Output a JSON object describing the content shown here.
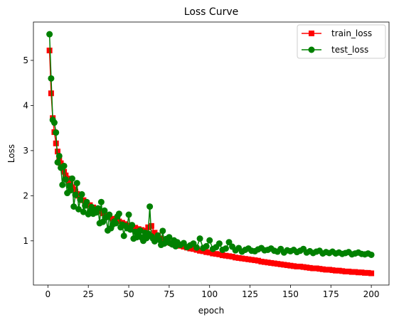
{
  "chart_data": {
    "type": "line",
    "title": "Loss Curve",
    "xlabel": "epoch",
    "ylabel": "Loss",
    "xlim": [
      -8.95,
      210.95
    ],
    "ylim": [
      0.02,
      5.85
    ],
    "xticks": [
      0,
      25,
      50,
      75,
      100,
      125,
      150,
      175,
      200
    ],
    "yticks": [
      1,
      2,
      3,
      4,
      5
    ],
    "grid": false,
    "legend": "top-right",
    "colors": {
      "train_loss": "#ff0000",
      "test_loss": "#008000"
    },
    "series": [
      {
        "name": "train_loss",
        "marker": "square",
        "x": [
          1,
          2,
          3,
          4,
          5,
          6,
          7,
          8,
          9,
          10,
          11,
          12,
          13,
          14,
          15,
          16,
          17,
          18,
          19,
          20,
          22,
          24,
          26,
          28,
          30,
          32,
          34,
          36,
          38,
          40,
          42,
          44,
          46,
          48,
          50,
          52,
          54,
          56,
          58,
          60,
          62,
          64,
          66,
          68,
          70,
          72,
          74,
          76,
          78,
          80,
          82,
          84,
          86,
          88,
          90,
          92,
          94,
          96,
          98,
          100,
          102,
          104,
          106,
          108,
          110,
          112,
          114,
          116,
          118,
          120,
          122,
          124,
          126,
          128,
          130,
          132,
          134,
          136,
          138,
          140,
          142,
          144,
          146,
          148,
          150,
          152,
          154,
          156,
          158,
          160,
          162,
          164,
          166,
          168,
          170,
          172,
          174,
          176,
          178,
          180,
          182,
          184,
          186,
          188,
          190,
          192,
          194,
          196,
          198,
          200
        ],
        "y": [
          5.22,
          4.27,
          3.72,
          3.41,
          3.16,
          2.98,
          2.83,
          2.72,
          2.62,
          2.53,
          2.45,
          2.38,
          2.31,
          2.25,
          2.19,
          2.14,
          2.09,
          2.04,
          2.0,
          1.96,
          1.9,
          1.84,
          1.79,
          1.74,
          1.7,
          1.65,
          1.61,
          1.57,
          1.53,
          1.49,
          1.46,
          1.43,
          1.4,
          1.37,
          1.34,
          1.31,
          1.29,
          1.26,
          1.24,
          1.22,
          1.3,
          1.33,
          1.18,
          1.12,
          1.05,
          1.02,
          0.98,
          0.95,
          0.93,
          0.91,
          0.89,
          0.87,
          0.85,
          0.83,
          0.82,
          0.8,
          0.78,
          0.77,
          0.75,
          0.74,
          0.72,
          0.71,
          0.7,
          0.68,
          0.67,
          0.66,
          0.65,
          0.63,
          0.62,
          0.61,
          0.6,
          0.59,
          0.58,
          0.57,
          0.56,
          0.54,
          0.53,
          0.52,
          0.51,
          0.5,
          0.49,
          0.48,
          0.47,
          0.46,
          0.45,
          0.44,
          0.43,
          0.43,
          0.42,
          0.41,
          0.4,
          0.39,
          0.39,
          0.38,
          0.37,
          0.36,
          0.36,
          0.35,
          0.34,
          0.34,
          0.33,
          0.32,
          0.32,
          0.31,
          0.31,
          0.3,
          0.3,
          0.29,
          0.29,
          0.28
        ]
      },
      {
        "name": "test_loss",
        "marker": "circle",
        "x": [
          1,
          2,
          3,
          4,
          5,
          6,
          7,
          8,
          9,
          10,
          11,
          12,
          13,
          14,
          15,
          16,
          17,
          18,
          19,
          20,
          21,
          22,
          23,
          24,
          25,
          26,
          27,
          28,
          29,
          30,
          31,
          32,
          33,
          34,
          35,
          36,
          37,
          38,
          39,
          40,
          41,
          42,
          43,
          44,
          45,
          46,
          47,
          48,
          49,
          50,
          51,
          52,
          53,
          54,
          55,
          56,
          57,
          58,
          59,
          60,
          61,
          62,
          63,
          64,
          65,
          66,
          67,
          68,
          69,
          70,
          71,
          72,
          73,
          74,
          75,
          76,
          77,
          78,
          79,
          80,
          82,
          84,
          86,
          88,
          90,
          92,
          94,
          96,
          98,
          100,
          102,
          104,
          106,
          108,
          110,
          112,
          114,
          116,
          118,
          120,
          122,
          124,
          126,
          128,
          130,
          132,
          134,
          136,
          138,
          140,
          142,
          144,
          146,
          148,
          150,
          152,
          154,
          156,
          158,
          160,
          162,
          164,
          166,
          168,
          170,
          172,
          174,
          176,
          178,
          180,
          182,
          184,
          186,
          188,
          190,
          192,
          194,
          196,
          198,
          200
        ],
        "y": [
          5.58,
          4.6,
          3.68,
          3.62,
          3.4,
          2.74,
          2.88,
          2.62,
          2.24,
          2.66,
          2.36,
          2.06,
          2.22,
          2.12,
          2.38,
          1.76,
          2.02,
          2.28,
          1.7,
          1.91,
          2.03,
          1.64,
          1.78,
          1.86,
          1.59,
          1.66,
          1.75,
          1.6,
          1.68,
          1.63,
          1.72,
          1.39,
          1.86,
          1.42,
          1.67,
          1.52,
          1.23,
          1.58,
          1.28,
          1.36,
          1.43,
          1.39,
          1.54,
          1.6,
          1.3,
          1.36,
          1.11,
          1.33,
          1.28,
          1.58,
          1.25,
          1.35,
          1.05,
          1.2,
          1.08,
          1.15,
          1.23,
          1.07,
          1.0,
          1.18,
          1.06,
          1.16,
          1.76,
          1.1,
          1.05,
          0.99,
          1.06,
          1.12,
          1.02,
          0.91,
          1.22,
          0.94,
          1.04,
          0.97,
          1.08,
          0.94,
          0.92,
          1.01,
          0.88,
          0.97,
          0.91,
          0.95,
          0.86,
          0.9,
          0.94,
          0.85,
          1.05,
          0.84,
          0.88,
          1.01,
          0.82,
          0.86,
          0.94,
          0.8,
          0.83,
          0.97,
          0.87,
          0.79,
          0.84,
          0.76,
          0.8,
          0.83,
          0.78,
          0.77,
          0.81,
          0.84,
          0.79,
          0.8,
          0.83,
          0.78,
          0.76,
          0.82,
          0.74,
          0.79,
          0.77,
          0.8,
          0.75,
          0.78,
          0.82,
          0.74,
          0.77,
          0.73,
          0.76,
          0.78,
          0.72,
          0.75,
          0.73,
          0.76,
          0.72,
          0.74,
          0.71,
          0.73,
          0.75,
          0.7,
          0.72,
          0.74,
          0.71,
          0.7,
          0.72,
          0.69
        ]
      }
    ]
  }
}
